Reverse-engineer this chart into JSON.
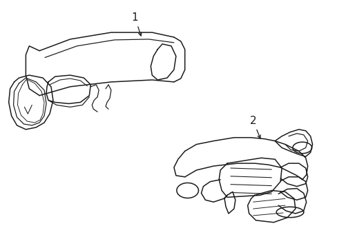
{
  "background_color": "#ffffff",
  "line_color": "#1a1a1a",
  "line_width": 1.1,
  "label_1": "1",
  "label_2": "2",
  "figsize": [
    4.89,
    3.6
  ],
  "dpi": 100
}
